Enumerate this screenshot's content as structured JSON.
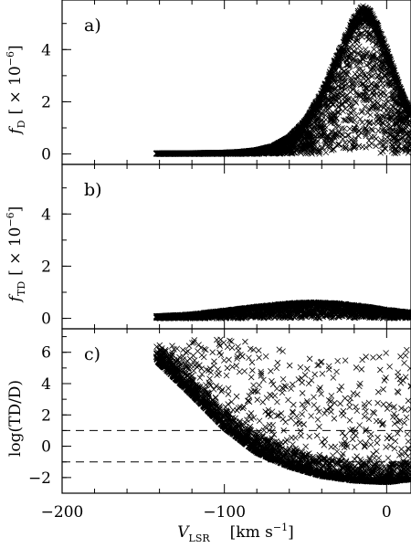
{
  "chart_data": [
    {
      "type": "scatter",
      "panel_label": "a)",
      "ylabel": "f_D [× 10⁻⁶]",
      "ylabel_parts": {
        "symbol": "f",
        "subscript": "D",
        "unit": "[ × 10",
        "exponent": "−6",
        "close": "]"
      },
      "xlim": [
        -200,
        15
      ],
      "ylim": [
        -0.4,
        5.9
      ],
      "yticks": [
        0,
        2,
        4
      ],
      "ytick_labels": [
        "0",
        "2",
        "4"
      ],
      "marker": "x",
      "series": [
        {
          "description_points": "Dense cloud of x markers along zero from about -142 to -60 km/s, rising into a peak near -15 km/s reaching ~5.7, filled down to zero",
          "envelope_x": [
            -142,
            -120,
            -100,
            -90,
            -80,
            -70,
            -60,
            -50,
            -40,
            -30,
            -20,
            -15,
            -10,
            -5,
            0,
            5,
            10,
            15
          ],
          "envelope_upper": [
            0.02,
            0.03,
            0.05,
            0.08,
            0.15,
            0.3,
            0.65,
            1.3,
            2.4,
            3.9,
            5.3,
            5.7,
            5.5,
            4.9,
            4.1,
            3.2,
            2.3,
            1.6
          ],
          "envelope_lower": [
            0.0,
            0.0,
            0.0,
            0.0,
            0.0,
            0.0,
            0.0,
            0.0,
            0.0,
            0.0,
            0.0,
            0.0,
            0.0,
            0.0,
            0.0,
            0.0,
            0.0,
            0.0
          ]
        }
      ]
    },
    {
      "type": "scatter",
      "panel_label": "b)",
      "ylabel": "f_TD [× 10⁻⁶]",
      "ylabel_parts": {
        "symbol": "f",
        "subscript": "TD",
        "unit": "[ × 10",
        "exponent": "−6",
        "close": "]"
      },
      "xlim": [
        -200,
        15
      ],
      "ylim": [
        -0.4,
        5.9
      ],
      "yticks": [
        0,
        2,
        4
      ],
      "ytick_labels": [
        "0",
        "2",
        "4"
      ],
      "marker": "x",
      "series": [
        {
          "envelope_x": [
            -142,
            -120,
            -100,
            -80,
            -60,
            -45,
            -30,
            -15,
            0,
            15
          ],
          "envelope_upper": [
            0.08,
            0.15,
            0.3,
            0.45,
            0.58,
            0.62,
            0.58,
            0.47,
            0.33,
            0.22
          ],
          "envelope_lower": [
            0.0,
            0.0,
            0.0,
            0.0,
            0.0,
            0.0,
            0.0,
            0.0,
            0.0,
            0.0
          ]
        }
      ]
    },
    {
      "type": "scatter",
      "panel_label": "c)",
      "ylabel": "log(TD/D)",
      "xlabel": "V_LSR [km s⁻¹]",
      "xlabel_parts": {
        "symbol": "V",
        "subscript": "LSR",
        "unit": "[km s",
        "exponent": "−1",
        "close": "]"
      },
      "xlim": [
        -200,
        15
      ],
      "ylim": [
        -3,
        7.5
      ],
      "yticks": [
        -2,
        0,
        2,
        4,
        6
      ],
      "ytick_labels": [
        "−2",
        "0",
        "2",
        "4",
        "6"
      ],
      "xticks": [
        -200,
        -100,
        0
      ],
      "xtick_labels": [
        "−200",
        "−100",
        "0"
      ],
      "hlines": [
        1,
        -1
      ],
      "marker": "x",
      "series": [
        {
          "lower_bound_x": [
            -142,
            -120,
            -100,
            -80,
            -60,
            -40,
            -20,
            0,
            15
          ],
          "lower_bound_y": [
            5.5,
            3.3,
            1.2,
            -0.4,
            -1.3,
            -1.9,
            -2.2,
            -2.3,
            -2.1
          ],
          "scatter_top_y": [
            6.1,
            6.8,
            6.9,
            6.6,
            6.0,
            5.5,
            5.5,
            6.3,
            6.3
          ]
        }
      ]
    }
  ]
}
